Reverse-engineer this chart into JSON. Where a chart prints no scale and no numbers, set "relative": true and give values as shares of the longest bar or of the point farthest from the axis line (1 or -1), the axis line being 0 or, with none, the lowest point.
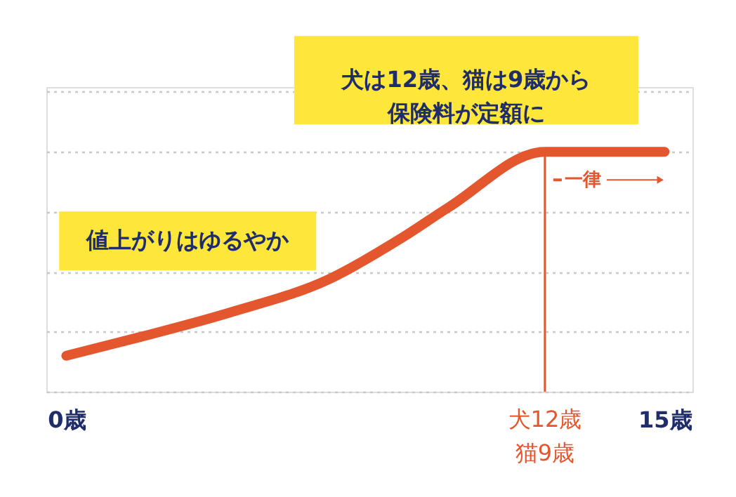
{
  "chart_data": {
    "type": "line",
    "relative": true,
    "x": [
      0,
      1.9,
      4.1,
      6.6,
      8.4,
      9.6,
      12,
      15
    ],
    "series": [
      {
        "color": "#e4572e",
        "values": [
          0.15,
          0.23,
          0.33,
          0.47,
          0.64,
          0.77,
          1,
          1
        ]
      }
    ],
    "xlim": [
      -0.5,
      15.7
    ],
    "xticks": [
      {
        "value": 0,
        "label": "0歳"
      },
      {
        "value": 15,
        "label": "15歳"
      }
    ],
    "grid": "y",
    "marker": "none",
    "line_style": "solid",
    "ref_lines": [
      {
        "axis": "x",
        "value": 12,
        "label": "犬12歳猫9歳",
        "color": "#e4572e"
      }
    ],
    "annotations": [
      {
        "text": "犬は12歳、猫は9歳から保険料が定額に",
        "x": 12,
        "y": 1
      },
      {
        "text": "値上がりはゆるやか",
        "x": 4.1,
        "y": 0.33
      },
      "一律"
    ]
  }
}
